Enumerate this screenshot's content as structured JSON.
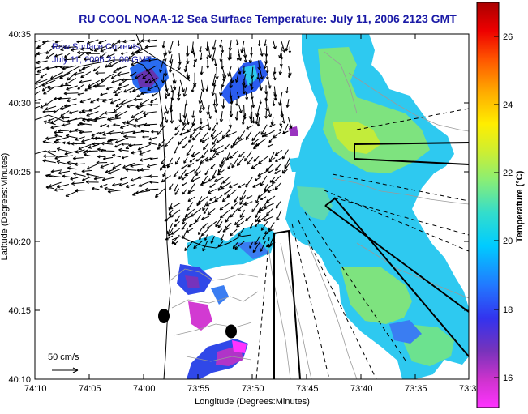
{
  "title": "RU COOL  NOAA-12  Sea Surface Temperature:  July 11, 2006 2123 GMT",
  "legend": {
    "line1": "Raw Surface Currents",
    "line2": "July 11, 2006 21:00 GMT",
    "scale_label": "50 cm/s"
  },
  "axes": {
    "xlabel": "Longitude (Degrees:Minutes)",
    "ylabel": "Latitude (Degrees:Minutes)",
    "xticks": [
      "74:10",
      "74:05",
      "74:00",
      "73:55",
      "73:50",
      "73:45",
      "73:40",
      "73:35",
      "73:3"
    ],
    "yticks": [
      "40:35",
      "40:30",
      "40:25",
      "40:20",
      "40:15",
      "40:10"
    ]
  },
  "colorbar": {
    "label": "Temperature (°C)",
    "ticks": [
      "26",
      "24",
      "22",
      "20",
      "18",
      "16"
    ],
    "min": 15,
    "max": 27,
    "colors": [
      "#ff33ff",
      "#cc33cc",
      "#7733bb",
      "#3333ee",
      "#2277ff",
      "#00ccff",
      "#33ddcc",
      "#88ee77",
      "#ccee33",
      "#ffee00",
      "#ffaa00",
      "#ff5500",
      "#ee0000",
      "#aa0000"
    ]
  }
}
